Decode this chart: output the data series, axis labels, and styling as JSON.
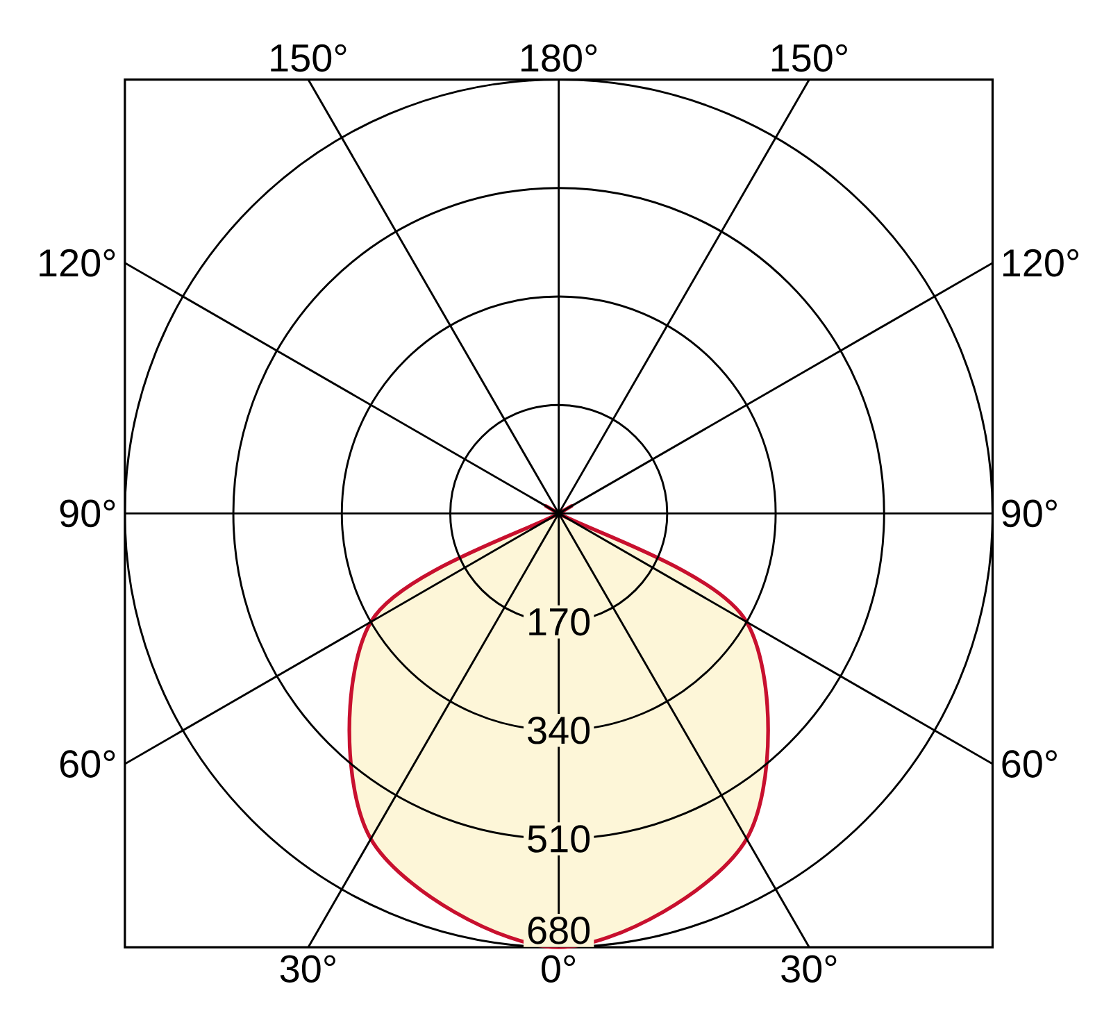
{
  "chart_data": {
    "type": "radar",
    "categories": [
      "180°",
      "150°",
      "120°",
      "90°",
      "60°",
      "30°",
      "0°",
      "30°",
      "60°",
      "90°",
      "120°",
      "150°"
    ],
    "ylim": [
      0,
      680
    ],
    "yticks": [
      170,
      340,
      510,
      680
    ],
    "grid": true,
    "series": [
      {
        "color": "#c8102e",
        "values": [
          0,
          0,
          0,
          0,
          340,
          589,
          680,
          589,
          340,
          0,
          0,
          0
        ]
      }
    ]
  }
}
